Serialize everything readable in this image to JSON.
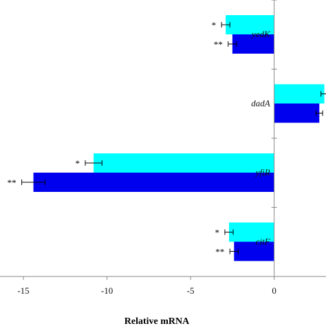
{
  "chart_data": {
    "type": "bar",
    "orientation": "horizontal",
    "categories": [
      "yedK",
      "dadA",
      "yfiR",
      "citF"
    ],
    "series": [
      {
        "color": "#00FFFF",
        "values": [
          -2.9,
          3.0,
          -10.8,
          -2.7
        ],
        "errors": [
          0.25,
          0.2,
          0.5,
          0.25
        ],
        "significance": [
          "*",
          "",
          "*",
          "*"
        ]
      },
      {
        "color": "#0000EE",
        "values": [
          -2.5,
          2.7,
          -14.4,
          -2.4
        ],
        "errors": [
          0.25,
          0.2,
          0.7,
          0.25
        ],
        "significance": [
          "**",
          "",
          "**",
          "**"
        ]
      }
    ],
    "xlabel": "Relative mRNA",
    "xlim": [
      -16.4,
      3.1
    ],
    "xticks": [
      -15,
      -10,
      -5,
      0
    ],
    "xtick_labels": [
      "-15",
      "-10",
      "-5",
      "0"
    ],
    "grid": false,
    "legend": "none"
  }
}
